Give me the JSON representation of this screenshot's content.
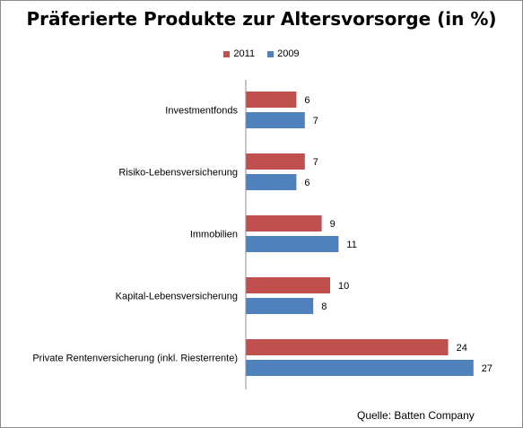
{
  "chart_data": {
    "type": "bar",
    "orientation": "horizontal",
    "title": "Präferierte Produkte zur Altersvorsorge (in %)",
    "categories": [
      "Investmentfonds",
      "Risiko-Lebensversicherung",
      "Immobilien",
      "Kapital-Lebensversicherung",
      "Private Rentenversicherung (inkl. Riesterrente)"
    ],
    "series": [
      {
        "name": "2011",
        "color": "#c0504d",
        "values": [
          6,
          7,
          9,
          10,
          24
        ]
      },
      {
        "name": "2009",
        "color": "#4f81bd",
        "values": [
          7,
          6,
          11,
          8,
          27
        ]
      }
    ],
    "xlim": [
      0,
      27
    ],
    "legend_position": "top",
    "grid": false
  },
  "source": "Quelle: Batten Company"
}
